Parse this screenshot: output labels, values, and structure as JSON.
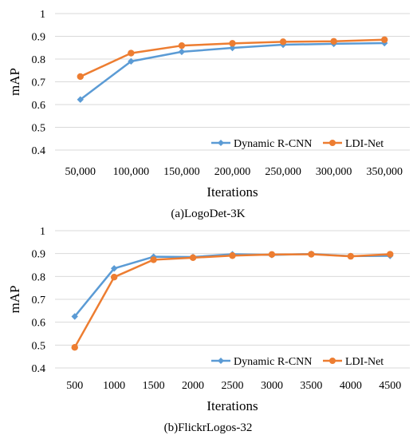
{
  "chart_data": [
    {
      "type": "line",
      "caption": "(a)LogoDet-3K",
      "xlabel": "Iterations",
      "ylabel": "mAP",
      "categories": [
        "50,000",
        "100,000",
        "150,000",
        "200,000",
        "250,000",
        "300,000",
        "350,000"
      ],
      "yticks": [
        "0.4",
        "0.5",
        "0.6",
        "0.7",
        "0.8",
        "0.9",
        "1"
      ],
      "ylim": [
        0.4,
        1.0
      ],
      "grid": "horizontal",
      "legend_position": "bottom-right",
      "series": [
        {
          "name": "Dynamic R-CNN",
          "color": "#5B9BD5",
          "marker": "diamond",
          "values": [
            0.622,
            0.79,
            0.832,
            0.849,
            0.863,
            0.867,
            0.87
          ]
        },
        {
          "name": "LDI-Net",
          "color": "#ED7D31",
          "marker": "circle",
          "values": [
            0.723,
            0.826,
            0.859,
            0.869,
            0.876,
            0.878,
            0.885
          ]
        }
      ]
    },
    {
      "type": "line",
      "caption": "(b)FlickrLogos-32",
      "xlabel": "Iterations",
      "ylabel": "mAP",
      "categories": [
        "500",
        "1000",
        "1500",
        "2000",
        "2500",
        "3000",
        "3500",
        "4000",
        "4500"
      ],
      "yticks": [
        "0.4",
        "0.5",
        "0.6",
        "0.7",
        "0.8",
        "0.9",
        "1"
      ],
      "ylim": [
        0.4,
        1.0
      ],
      "grid": "horizontal",
      "legend_position": "bottom-right",
      "series": [
        {
          "name": "Dynamic R-CNN",
          "color": "#5B9BD5",
          "marker": "diamond",
          "values": [
            0.625,
            0.835,
            0.886,
            0.885,
            0.897,
            0.894,
            0.898,
            0.889,
            0.89
          ]
        },
        {
          "name": "LDI-Net",
          "color": "#ED7D31",
          "marker": "circle",
          "values": [
            0.49,
            0.797,
            0.873,
            0.882,
            0.891,
            0.896,
            0.897,
            0.888,
            0.897
          ]
        }
      ]
    }
  ]
}
